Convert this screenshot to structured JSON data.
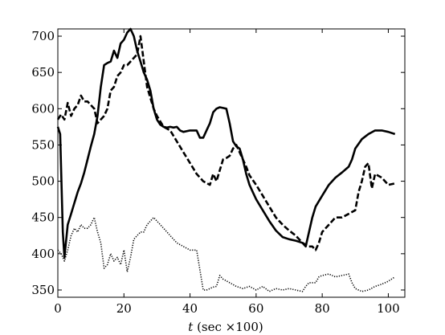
{
  "chart_data": {
    "type": "line",
    "title": "",
    "xlabel": {
      "var": "t",
      "unit": "(sec ×100)"
    },
    "ylabel": "",
    "xlim": [
      0,
      105
    ],
    "ylim": [
      340,
      710
    ],
    "x_ticks": [
      0,
      20,
      40,
      60,
      80,
      100
    ],
    "y_ticks": [
      350,
      400,
      450,
      500,
      550,
      600,
      650,
      700
    ],
    "grid": false,
    "legend": "none",
    "series": [
      {
        "style": "solid",
        "color": "#000000",
        "points": [
          [
            0,
            575
          ],
          [
            0.7,
            565
          ],
          [
            1.5,
            430
          ],
          [
            2,
            395
          ],
          [
            3,
            440
          ],
          [
            4,
            455
          ],
          [
            5,
            470
          ],
          [
            6,
            485
          ],
          [
            7,
            497
          ],
          [
            8,
            512
          ],
          [
            9,
            530
          ],
          [
            10,
            548
          ],
          [
            11,
            565
          ],
          [
            12,
            590
          ],
          [
            13,
            630
          ],
          [
            14,
            660
          ],
          [
            15,
            663
          ],
          [
            16,
            665
          ],
          [
            17,
            680
          ],
          [
            18,
            670
          ],
          [
            19,
            690
          ],
          [
            20,
            695
          ],
          [
            21,
            705
          ],
          [
            22,
            710
          ],
          [
            23,
            700
          ],
          [
            24,
            680
          ],
          [
            25,
            665
          ],
          [
            26,
            650
          ],
          [
            27,
            640
          ],
          [
            28,
            625
          ],
          [
            29,
            600
          ],
          [
            30,
            585
          ],
          [
            31,
            578
          ],
          [
            32,
            575
          ],
          [
            33,
            574
          ],
          [
            34,
            575
          ],
          [
            35,
            574
          ],
          [
            36,
            575
          ],
          [
            37,
            570
          ],
          [
            38,
            568
          ],
          [
            40,
            570
          ],
          [
            41,
            570
          ],
          [
            42,
            570
          ],
          [
            43,
            560
          ],
          [
            44,
            560
          ],
          [
            45,
            570
          ],
          [
            46,
            580
          ],
          [
            47,
            595
          ],
          [
            48,
            600
          ],
          [
            49,
            602
          ],
          [
            50,
            601
          ],
          [
            51,
            600
          ],
          [
            52,
            580
          ],
          [
            53,
            555
          ],
          [
            54,
            548
          ],
          [
            55,
            545
          ],
          [
            56,
            530
          ],
          [
            57,
            510
          ],
          [
            58,
            495
          ],
          [
            59,
            485
          ],
          [
            60,
            475
          ],
          [
            62,
            460
          ],
          [
            64,
            445
          ],
          [
            66,
            432
          ],
          [
            68,
            423
          ],
          [
            70,
            420
          ],
          [
            72,
            418
          ],
          [
            74,
            415
          ],
          [
            75,
            410
          ],
          [
            76,
            430
          ],
          [
            77,
            450
          ],
          [
            78,
            465
          ],
          [
            80,
            480
          ],
          [
            82,
            495
          ],
          [
            84,
            505
          ],
          [
            86,
            512
          ],
          [
            88,
            520
          ],
          [
            89,
            530
          ],
          [
            90,
            545
          ],
          [
            92,
            558
          ],
          [
            94,
            565
          ],
          [
            96,
            570
          ],
          [
            98,
            570
          ],
          [
            100,
            568
          ],
          [
            102,
            565
          ]
        ]
      },
      {
        "style": "dashed",
        "color": "#000000",
        "points": [
          [
            0,
            585
          ],
          [
            1,
            592
          ],
          [
            2,
            585
          ],
          [
            3,
            608
          ],
          [
            4,
            590
          ],
          [
            5,
            600
          ],
          [
            6,
            605
          ],
          [
            7,
            618
          ],
          [
            8,
            610
          ],
          [
            9,
            610
          ],
          [
            10,
            605
          ],
          [
            11,
            600
          ],
          [
            12,
            580
          ],
          [
            13,
            585
          ],
          [
            14,
            590
          ],
          [
            15,
            600
          ],
          [
            16,
            625
          ],
          [
            17,
            630
          ],
          [
            18,
            645
          ],
          [
            19,
            650
          ],
          [
            20,
            660
          ],
          [
            21,
            660
          ],
          [
            22,
            665
          ],
          [
            23,
            670
          ],
          [
            24,
            675
          ],
          [
            25,
            700
          ],
          [
            26,
            665
          ],
          [
            27,
            630
          ],
          [
            28,
            615
          ],
          [
            29,
            600
          ],
          [
            30,
            590
          ],
          [
            32,
            575
          ],
          [
            34,
            570
          ],
          [
            36,
            555
          ],
          [
            38,
            540
          ],
          [
            40,
            525
          ],
          [
            42,
            510
          ],
          [
            44,
            500
          ],
          [
            46,
            495
          ],
          [
            47,
            510
          ],
          [
            48,
            500
          ],
          [
            49,
            515
          ],
          [
            50,
            530
          ],
          [
            51,
            532
          ],
          [
            52,
            535
          ],
          [
            53,
            545
          ],
          [
            54,
            550
          ],
          [
            55,
            540
          ],
          [
            56,
            530
          ],
          [
            57,
            520
          ],
          [
            58,
            508
          ],
          [
            60,
            495
          ],
          [
            62,
            480
          ],
          [
            64,
            465
          ],
          [
            66,
            450
          ],
          [
            68,
            440
          ],
          [
            70,
            432
          ],
          [
            72,
            425
          ],
          [
            74,
            415
          ],
          [
            76,
            410
          ],
          [
            77,
            410
          ],
          [
            78,
            405
          ],
          [
            79,
            415
          ],
          [
            80,
            430
          ],
          [
            82,
            440
          ],
          [
            84,
            450
          ],
          [
            86,
            450
          ],
          [
            88,
            455
          ],
          [
            90,
            460
          ],
          [
            91,
            485
          ],
          [
            92,
            500
          ],
          [
            93,
            520
          ],
          [
            94,
            525
          ],
          [
            95,
            490
          ],
          [
            96,
            510
          ],
          [
            98,
            505
          ],
          [
            100,
            495
          ],
          [
            102,
            497
          ]
        ]
      },
      {
        "style": "dotted",
        "color": "#000000",
        "points": [
          [
            0,
            405
          ],
          [
            1,
            400
          ],
          [
            2,
            390
          ],
          [
            3,
            405
          ],
          [
            4,
            425
          ],
          [
            5,
            435
          ],
          [
            6,
            430
          ],
          [
            7,
            440
          ],
          [
            8,
            435
          ],
          [
            9,
            435
          ],
          [
            10,
            440
          ],
          [
            11,
            450
          ],
          [
            12,
            430
          ],
          [
            13,
            415
          ],
          [
            14,
            380
          ],
          [
            15,
            385
          ],
          [
            16,
            400
          ],
          [
            17,
            390
          ],
          [
            18,
            395
          ],
          [
            19,
            385
          ],
          [
            20,
            405
          ],
          [
            21,
            375
          ],
          [
            22,
            395
          ],
          [
            23,
            420
          ],
          [
            24,
            425
          ],
          [
            25,
            430
          ],
          [
            26,
            430
          ],
          [
            27,
            440
          ],
          [
            28,
            445
          ],
          [
            29,
            450
          ],
          [
            30,
            445
          ],
          [
            32,
            435
          ],
          [
            34,
            425
          ],
          [
            36,
            415
          ],
          [
            38,
            410
          ],
          [
            40,
            405
          ],
          [
            42,
            405
          ],
          [
            44,
            350
          ],
          [
            45,
            350
          ],
          [
            46,
            352
          ],
          [
            47,
            354
          ],
          [
            48,
            355
          ],
          [
            49,
            370
          ],
          [
            50,
            365
          ],
          [
            52,
            360
          ],
          [
            54,
            355
          ],
          [
            56,
            352
          ],
          [
            58,
            355
          ],
          [
            60,
            350
          ],
          [
            62,
            355
          ],
          [
            64,
            348
          ],
          [
            66,
            352
          ],
          [
            68,
            350
          ],
          [
            70,
            352
          ],
          [
            72,
            350
          ],
          [
            74,
            348
          ],
          [
            75,
            355
          ],
          [
            76,
            360
          ],
          [
            78,
            360
          ],
          [
            79,
            368
          ],
          [
            80,
            370
          ],
          [
            82,
            372
          ],
          [
            84,
            368
          ],
          [
            86,
            370
          ],
          [
            88,
            372
          ],
          [
            89,
            360
          ],
          [
            90,
            352
          ],
          [
            92,
            348
          ],
          [
            94,
            350
          ],
          [
            96,
            355
          ],
          [
            98,
            358
          ],
          [
            100,
            362
          ],
          [
            102,
            368
          ]
        ]
      }
    ]
  }
}
